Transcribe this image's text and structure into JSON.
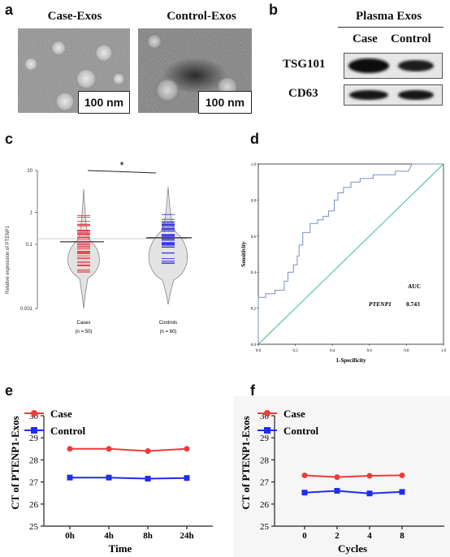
{
  "panels": {
    "a": {
      "label": "a",
      "case_title": "Case-Exos",
      "control_title": "Control-Exos",
      "scale_case": "100 nm",
      "scale_control": "100 nm"
    },
    "b": {
      "label": "b",
      "header": "Plasma Exos",
      "col_case": "Case",
      "col_control": "Control",
      "row1": "TSG101",
      "row2": "CD63"
    },
    "c": {
      "label": "c"
    },
    "d": {
      "label": "d"
    },
    "e": {
      "label": "e"
    },
    "f": {
      "label": "f"
    }
  },
  "chart_data": [
    {
      "panel": "c",
      "type": "scatter",
      "ylabel": "Relative expression of PTENP1",
      "yscale": "log",
      "yticks": [
        "0.001",
        "0.1",
        "1",
        "20"
      ],
      "categories": [
        "Cases",
        "Controls"
      ],
      "category_counts": [
        "(n = 50)",
        "(n = 60)"
      ],
      "medians": [
        0.12,
        0.16
      ],
      "reference_line": 0.15,
      "significance": "*",
      "colors": {
        "Cases": "#e8404a",
        "Controls": "#3b3bd9"
      }
    },
    {
      "panel": "d",
      "type": "line",
      "xlabel": "1-Specificity",
      "ylabel": "Sensitivity",
      "xlim": [
        0,
        1
      ],
      "ylim": [
        0,
        1
      ],
      "xticks": [
        "0.0",
        "0.2",
        "0.4",
        "0.6",
        "0.8",
        "1.0"
      ],
      "yticks": [
        "0.0",
        "0.2",
        "0.4",
        "0.6",
        "0.8",
        "1.0"
      ],
      "auc_header": "AUC",
      "auc_label": "PTENP1",
      "auc_value": "0.743",
      "roc": {
        "x": [
          0,
          0,
          0.04,
          0.04,
          0.09,
          0.09,
          0.14,
          0.14,
          0.16,
          0.16,
          0.19,
          0.19,
          0.21,
          0.21,
          0.22,
          0.22,
          0.24,
          0.24,
          0.28,
          0.28,
          0.32,
          0.32,
          0.35,
          0.35,
          0.38,
          0.38,
          0.41,
          0.41,
          0.43,
          0.43,
          0.46,
          0.46,
          0.5,
          0.5,
          0.55,
          0.55,
          0.62,
          0.62,
          0.74,
          0.74,
          0.81,
          0.83,
          1.0
        ],
        "y": [
          0,
          0.26,
          0.26,
          0.28,
          0.28,
          0.3,
          0.3,
          0.35,
          0.35,
          0.4,
          0.4,
          0.44,
          0.44,
          0.49,
          0.49,
          0.55,
          0.55,
          0.62,
          0.62,
          0.67,
          0.67,
          0.69,
          0.69,
          0.71,
          0.71,
          0.74,
          0.74,
          0.8,
          0.8,
          0.84,
          0.84,
          0.87,
          0.87,
          0.9,
          0.9,
          0.92,
          0.92,
          0.94,
          0.94,
          0.96,
          0.96,
          1.0,
          1.0
        ]
      },
      "colors": {
        "roc": "#7b8fc9",
        "reference": "#3fbf82"
      }
    },
    {
      "panel": "e",
      "type": "line",
      "xlabel": "Time",
      "ylabel": "CT of PTENP1-Exos",
      "categories": [
        "0h",
        "4h",
        "8h",
        "24h"
      ],
      "ylim": [
        25,
        30
      ],
      "yticks": [
        "25",
        "26",
        "27",
        "28",
        "29",
        "30"
      ],
      "series": [
        {
          "name": "Case",
          "values": [
            28.5,
            28.5,
            28.4,
            28.5
          ],
          "color": "#ee3b3b"
        },
        {
          "name": "Control",
          "values": [
            27.2,
            27.2,
            27.15,
            27.18
          ],
          "color": "#1e2df0"
        }
      ]
    },
    {
      "panel": "f",
      "type": "line",
      "xlabel": "Cycles",
      "ylabel": "CT of PTENP1-Exos",
      "categories": [
        "0",
        "2",
        "4",
        "8"
      ],
      "ylim": [
        25,
        30
      ],
      "yticks": [
        "25",
        "26",
        "27",
        "28",
        "29",
        "30"
      ],
      "series": [
        {
          "name": "Case",
          "values": [
            27.3,
            27.22,
            27.28,
            27.3
          ],
          "color": "#ee3b3b"
        },
        {
          "name": "Control",
          "values": [
            26.52,
            26.6,
            26.48,
            26.55
          ],
          "color": "#1e2df0"
        }
      ]
    }
  ]
}
